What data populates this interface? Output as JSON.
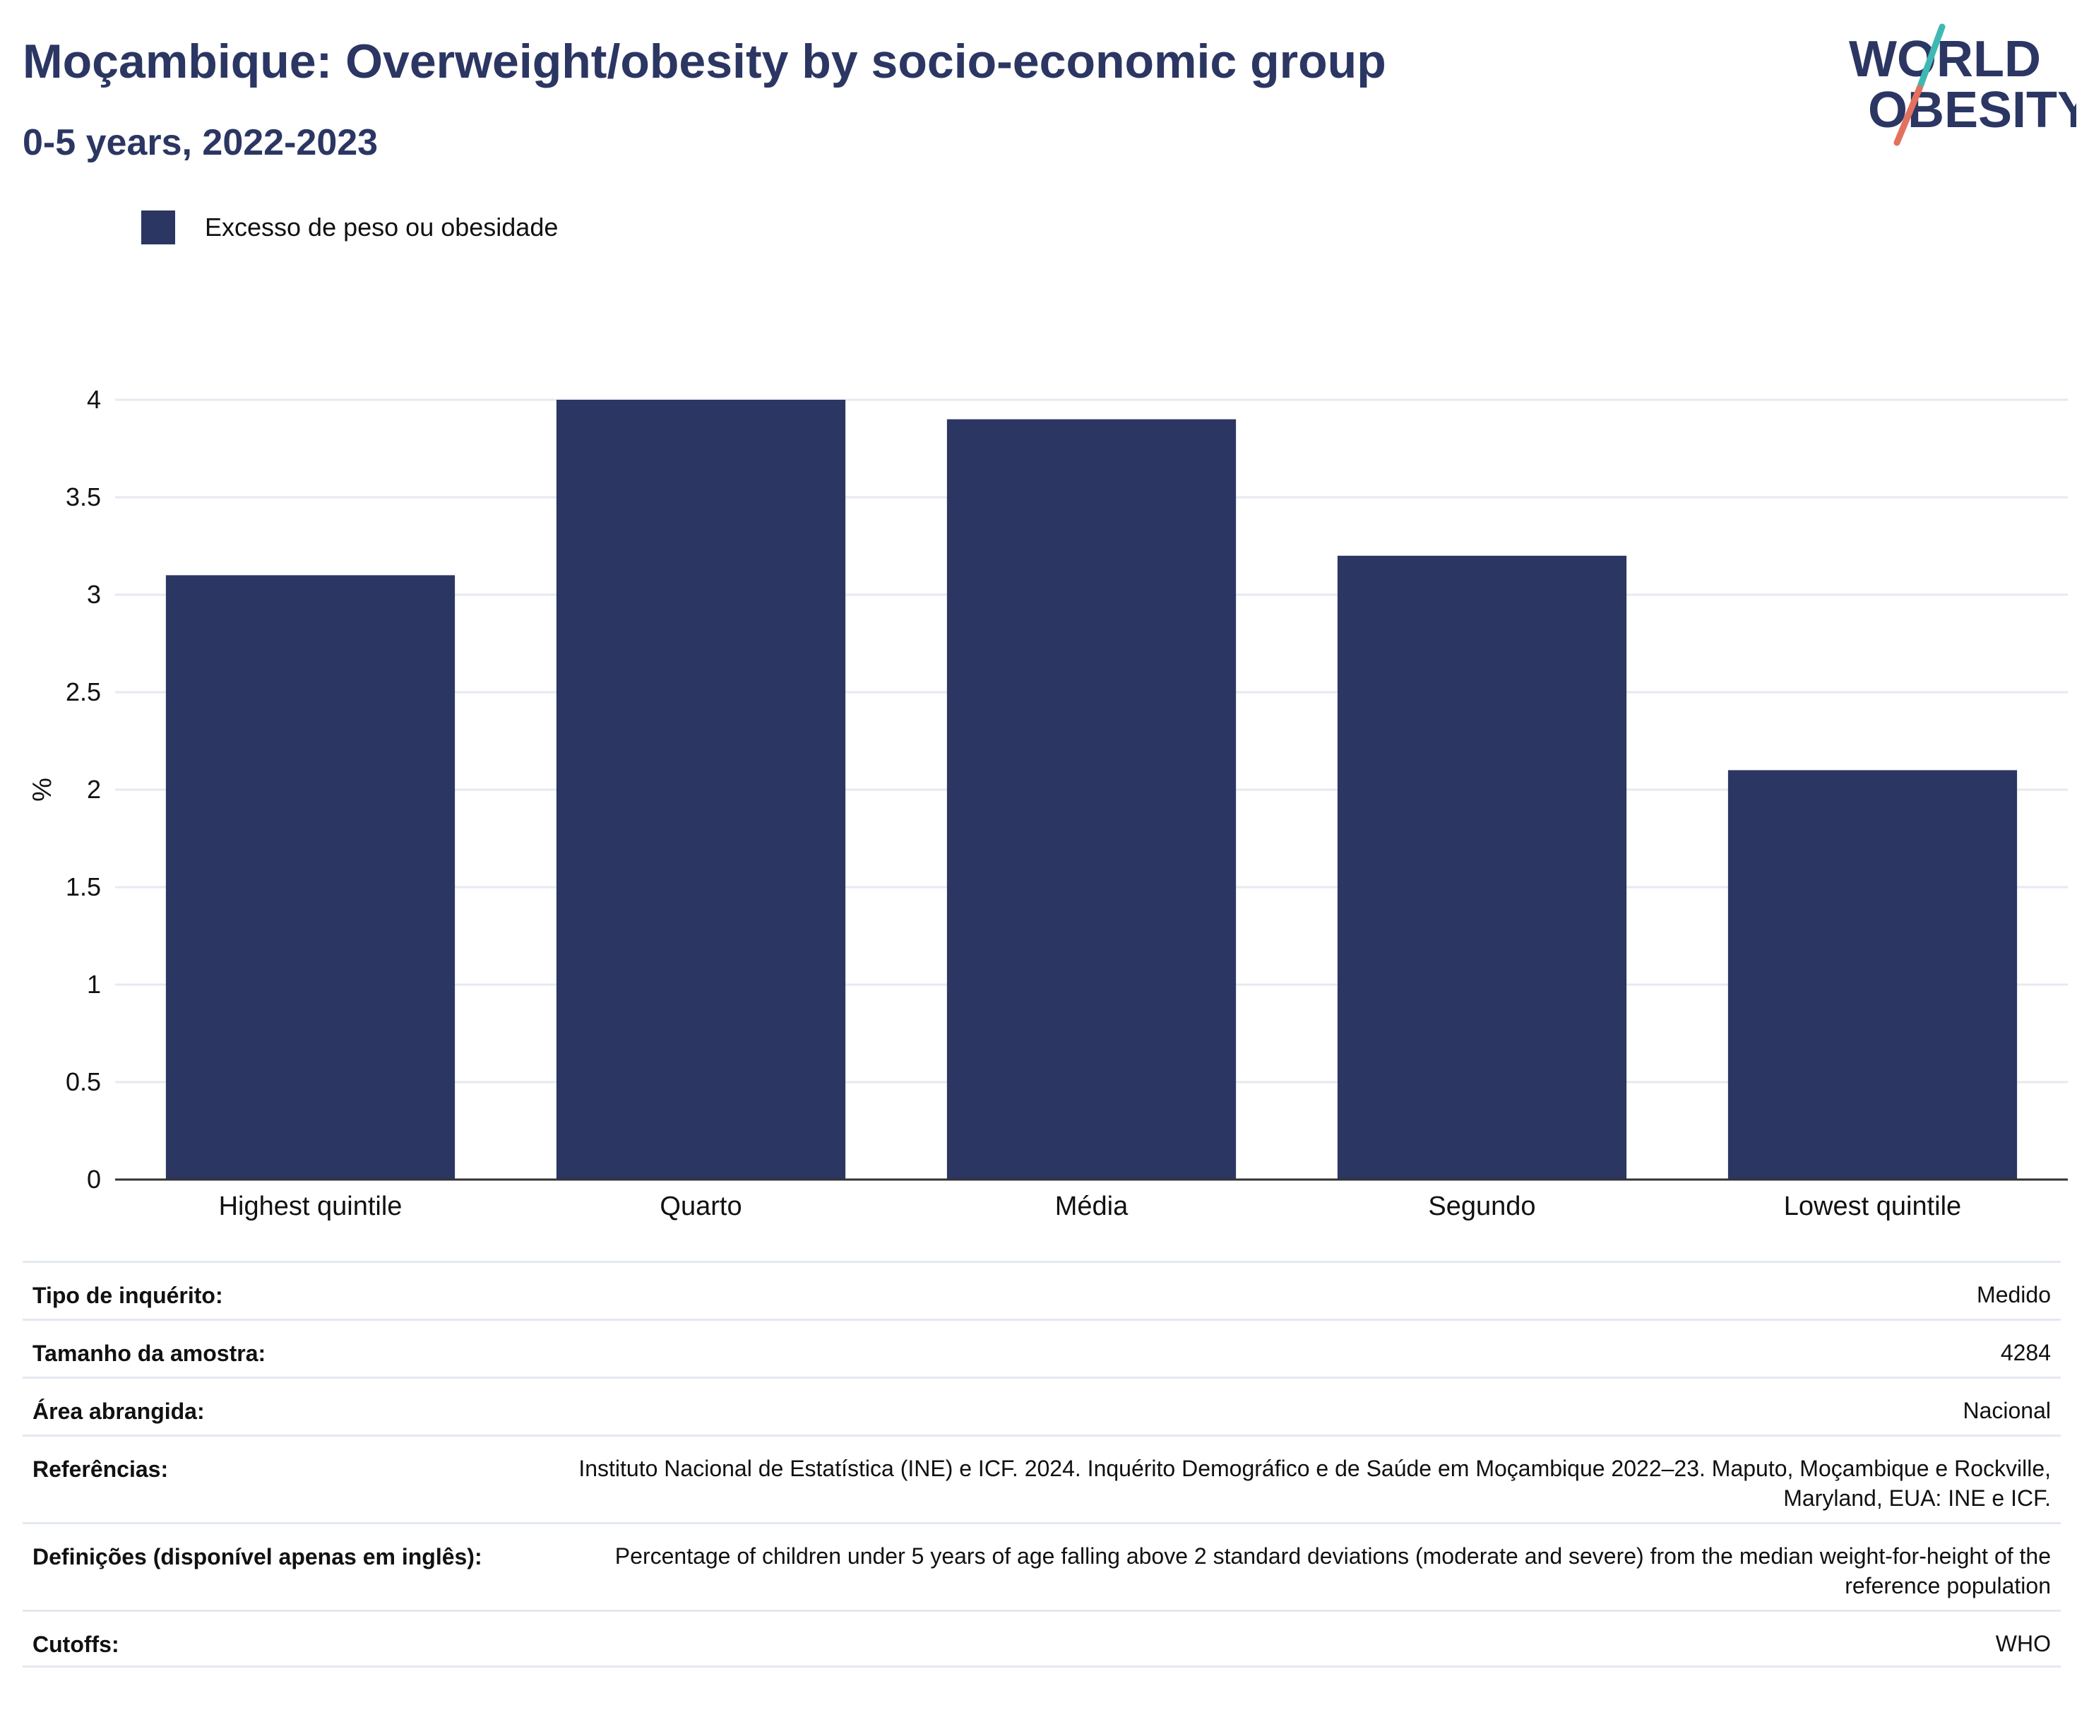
{
  "header": {
    "title": "Moçambique: Overweight/obesity by socio-economic group",
    "subtitle": "0-5 years, 2022-2023"
  },
  "logo": {
    "line1": "WORLD",
    "line2": "OBESITY"
  },
  "legend": {
    "label": "Excesso de peso ou obesidade"
  },
  "colors": {
    "bar": "#2b3663",
    "title": "#2b3663",
    "grid": "#e6e9f0",
    "axis": "#333333",
    "logo_teal": "#3fb8b4",
    "logo_coral": "#e4705e"
  },
  "chart_data": {
    "type": "bar",
    "categories": [
      "Highest quintile",
      "Quarto",
      "Média",
      "Segundo",
      "Lowest quintile"
    ],
    "series": [
      {
        "name": "Excesso de peso ou obesidade",
        "values": [
          3.1,
          4.0,
          3.9,
          3.2,
          2.1
        ]
      }
    ],
    "ylabel": "%",
    "ylim": [
      0,
      4
    ],
    "yticks": [
      "0",
      "0.5",
      "1",
      "1.5",
      "2",
      "2.5",
      "3",
      "3.5",
      "4"
    ],
    "grid": true,
    "legend_position": "top-left"
  },
  "meta": {
    "rows": [
      {
        "key": "Tipo de inquérito:",
        "value": "Medido"
      },
      {
        "key": "Tamanho da amostra:",
        "value": "4284"
      },
      {
        "key": "Área abrangida:",
        "value": "Nacional"
      },
      {
        "key": "Referências:",
        "value": "Instituto Nacional de Estatística (INE) e ICF. 2024. Inquérito Demográfico e de Saúde em Moçambique 2022–23. Maputo, Moçambique e Rockville, Maryland, EUA: INE e ICF."
      },
      {
        "key": "Definições (disponível apenas em inglês):",
        "value": "Percentage of children under 5 years of age falling above 2 standard deviations (moderate and severe) from the median weight-for-height of the reference population"
      },
      {
        "key": "Cutoffs:",
        "value": "WHO"
      }
    ]
  }
}
